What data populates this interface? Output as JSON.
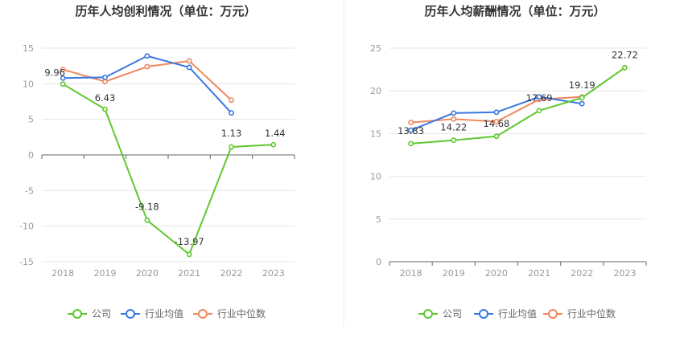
{
  "chart_data": [
    {
      "type": "line",
      "title": "历年人均创利情况（单位：万元）",
      "categories": [
        "2018",
        "2019",
        "2020",
        "2021",
        "2022",
        "2023"
      ],
      "ylim": [
        -15,
        15
      ],
      "yticks": [
        15,
        10,
        5,
        0,
        -5,
        -10,
        -15
      ],
      "grid": true,
      "legend_position": "bottom",
      "series": [
        {
          "name": "公司",
          "color": "#5ec82e",
          "values": [
            9.96,
            6.43,
            -9.18,
            -13.97,
            1.13,
            1.44
          ],
          "labels": [
            "9.96",
            "6.43",
            "-9.18",
            "-13.97",
            "1.13",
            "1.44"
          ]
        },
        {
          "name": "行业均值",
          "color": "#3a78e0",
          "values": [
            10.8,
            10.9,
            13.9,
            12.3,
            5.9,
            null
          ]
        },
        {
          "name": "行业中位数",
          "color": "#f0875c",
          "values": [
            12.0,
            10.3,
            12.4,
            13.2,
            7.7,
            null
          ]
        }
      ]
    },
    {
      "type": "line",
      "title": "历年人均薪酬情况（单位：万元）",
      "categories": [
        "2018",
        "2019",
        "2020",
        "2021",
        "2022",
        "2023"
      ],
      "ylim": [
        0,
        25
      ],
      "yticks": [
        25,
        20,
        15,
        10,
        5,
        0
      ],
      "grid": true,
      "legend_position": "bottom",
      "series": [
        {
          "name": "公司",
          "color": "#5ec82e",
          "values": [
            13.83,
            14.22,
            14.68,
            17.69,
            19.19,
            22.72
          ],
          "labels": [
            "13.83",
            "14.22",
            "14.68",
            "17.69",
            "19.19",
            "22.72"
          ]
        },
        {
          "name": "行业均值",
          "color": "#3a78e0",
          "values": [
            15.4,
            17.4,
            17.5,
            19.3,
            18.5,
            null
          ]
        },
        {
          "name": "行业中位数",
          "color": "#f0875c",
          "values": [
            16.3,
            16.7,
            16.4,
            19.0,
            19.3,
            null
          ]
        }
      ]
    }
  ]
}
